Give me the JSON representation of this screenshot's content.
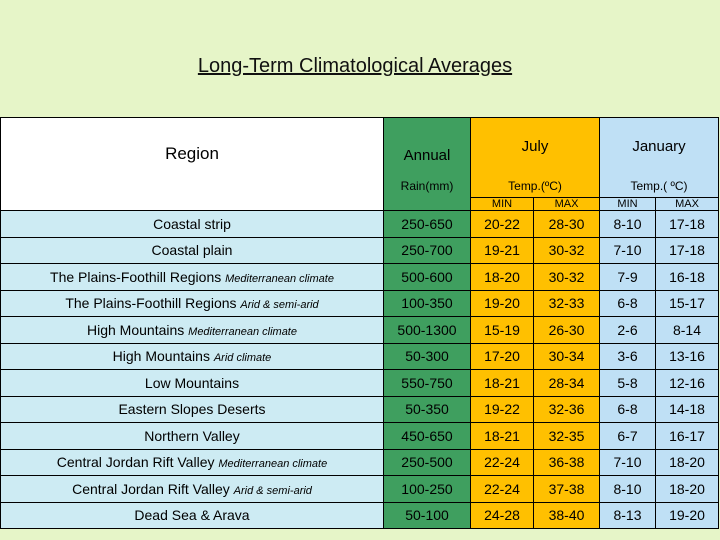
{
  "title": "Long-Term Climatological Averages",
  "header": {
    "region": "Region",
    "annual": "Annual",
    "rain": "Rain(mm)",
    "july": "July",
    "january": "January",
    "temp_july": "Temp.(ºC)",
    "temp_january": "Temp.( ºC)",
    "min": "MIN",
    "max": "MAX"
  },
  "rows": [
    {
      "region": "Coastal strip",
      "note": "",
      "rain": "250-650",
      "july_min": "20-22",
      "july_max": "28-30",
      "jan_min": "8-10",
      "jan_max": "17-18"
    },
    {
      "region": "Coastal plain",
      "note": "",
      "rain": "250-700",
      "july_min": "19-21",
      "july_max": "30-32",
      "jan_min": "7-10",
      "jan_max": "17-18"
    },
    {
      "region": "The Plains-Foothill Regions",
      "note": "Mediterranean climate",
      "rain": "500-600",
      "july_min": "18-20",
      "july_max": "30-32",
      "jan_min": "7-9",
      "jan_max": "16-18"
    },
    {
      "region": "The Plains-Foothill Regions",
      "note": "Arid & semi-arid",
      "rain": "100-350",
      "july_min": "19-20",
      "july_max": "32-33",
      "jan_min": "6-8",
      "jan_max": "15-17"
    },
    {
      "region": "High Mountains",
      "note": "Mediterranean climate",
      "rain": "500-1300",
      "july_min": "15-19",
      "july_max": "26-30",
      "jan_min": "2-6",
      "jan_max": "8-14"
    },
    {
      "region": "High Mountains",
      "note": "Arid climate",
      "rain": "50-300",
      "july_min": "17-20",
      "july_max": "30-34",
      "jan_min": "3-6",
      "jan_max": "13-16"
    },
    {
      "region": "Low Mountains",
      "note": "",
      "rain": "550-750",
      "july_min": "18-21",
      "july_max": "28-34",
      "jan_min": "5-8",
      "jan_max": "12-16"
    },
    {
      "region": "Eastern Slopes Deserts",
      "note": "",
      "rain": "50-350",
      "july_min": "19-22",
      "july_max": "32-36",
      "jan_min": "6-8",
      "jan_max": "14-18"
    },
    {
      "region": "Northern Valley",
      "note": "",
      "rain": "450-650",
      "july_min": "18-21",
      "july_max": "32-35",
      "jan_min": "6-7",
      "jan_max": "16-17"
    },
    {
      "region": "Central Jordan Rift Valley",
      "note": "Mediterranean climate",
      "rain": "250-500",
      "july_min": "22-24",
      "july_max": "36-38",
      "jan_min": "7-10",
      "jan_max": "18-20"
    },
    {
      "region": "Central Jordan Rift Valley",
      "note": "Arid & semi-arid",
      "rain": "100-250",
      "july_min": "22-24",
      "july_max": "37-38",
      "jan_min": "8-10",
      "jan_max": "18-20"
    },
    {
      "region": "Dead Sea & Arava",
      "note": "",
      "rain": "50-100",
      "july_min": "24-28",
      "july_max": "38-40",
      "jan_min": "8-13",
      "jan_max": "19-20"
    }
  ]
}
